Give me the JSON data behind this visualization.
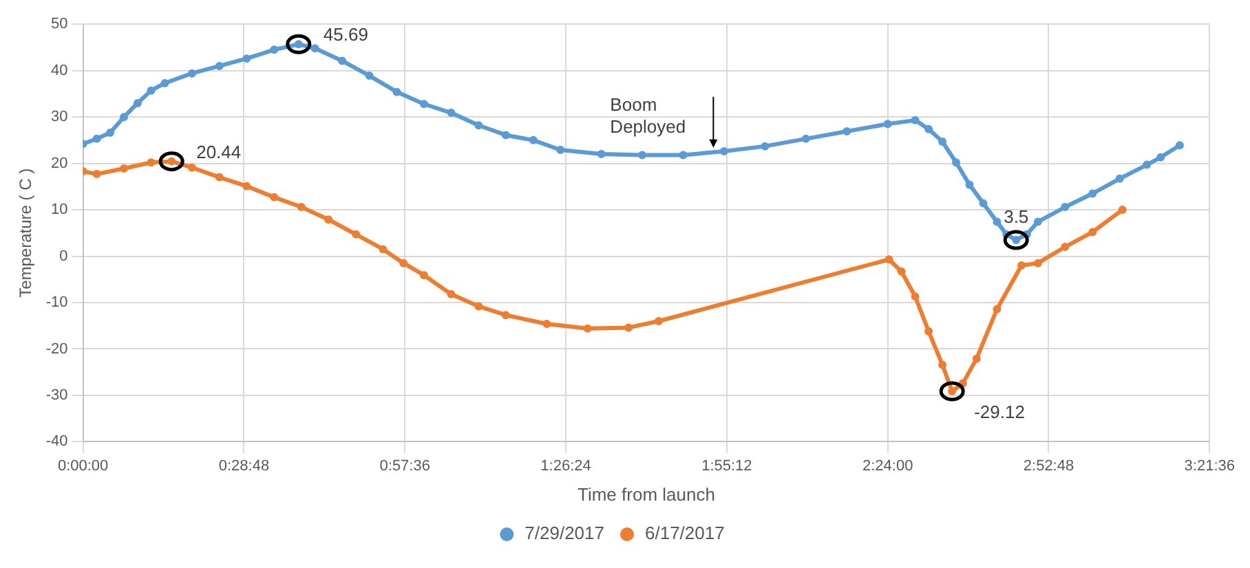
{
  "chart_data": {
    "type": "line",
    "xlabel": "Time from launch",
    "ylabel": "Temperature ( C )",
    "xlim": [
      0,
      3.36
    ],
    "xticks": [
      {
        "value": 0,
        "label": "0:00:00"
      },
      {
        "value": 0.48,
        "label": "0:28:48"
      },
      {
        "value": 0.96,
        "label": "0:57:36"
      },
      {
        "value": 1.44,
        "label": "1:26:24"
      },
      {
        "value": 1.92,
        "label": "1:55:12"
      },
      {
        "value": 2.4,
        "label": "2:24:00"
      },
      {
        "value": 2.88,
        "label": "2:52:48"
      },
      {
        "value": 3.36,
        "label": "3:21:36"
      }
    ],
    "ylim": [
      -40,
      50
    ],
    "yticks": [
      -40,
      -30,
      -20,
      -10,
      0,
      10,
      20,
      30,
      40,
      50
    ],
    "grid": true,
    "legend": "bottom",
    "marker": "circle",
    "line_style": "solid",
    "series": [
      {
        "name": "7/29/2017",
        "color": "#5b9bd5",
        "x": [
          0,
          0.041,
          0.081,
          0.122,
          0.163,
          0.203,
          0.244,
          0.325,
          0.407,
          0.488,
          0.57,
          0.643,
          0.692,
          0.773,
          0.854,
          0.936,
          1.017,
          1.098,
          1.18,
          1.261,
          1.343,
          1.424,
          1.546,
          1.668,
          1.79,
          1.912,
          2.034,
          2.156,
          2.278,
          2.4,
          2.482,
          2.522,
          2.563,
          2.604,
          2.644,
          2.685,
          2.726,
          2.754,
          2.783,
          2.815,
          2.848,
          2.929,
          3.011,
          3.092,
          3.173,
          3.214,
          3.271
        ],
        "values": [
          24.2,
          25.3,
          26.6,
          30,
          33,
          35.7,
          37.3,
          39.4,
          41,
          42.6,
          44.5,
          45.69,
          44.8,
          42.1,
          38.9,
          35.4,
          32.8,
          30.9,
          28.2,
          26.1,
          25,
          22.9,
          22,
          21.8,
          21.8,
          22.6,
          23.7,
          25.3,
          26.9,
          28.5,
          29.3,
          27.4,
          24.7,
          20.2,
          15.4,
          11.4,
          7.4,
          4.7,
          3.5,
          4.7,
          7.4,
          10.6,
          13.5,
          16.7,
          19.7,
          21.3,
          23.9
        ]
      },
      {
        "name": "6/17/2017",
        "color": "#ed7d31",
        "x": [
          0,
          0.041,
          0.122,
          0.203,
          0.264,
          0.325,
          0.407,
          0.488,
          0.57,
          0.651,
          0.732,
          0.814,
          0.895,
          0.956,
          1.017,
          1.098,
          1.18,
          1.261,
          1.383,
          1.505,
          1.627,
          1.717,
          2.404,
          2.441,
          2.482,
          2.522,
          2.563,
          2.592,
          2.624,
          2.665,
          2.726,
          2.799,
          2.848,
          2.929,
          3.011,
          3.1
        ],
        "values": [
          18.3,
          17.7,
          18.9,
          20.2,
          20.44,
          19.1,
          17,
          15.1,
          12.7,
          10.6,
          7.9,
          4.7,
          1.5,
          -1.5,
          -4.1,
          -8.2,
          -10.8,
          -12.7,
          -14.6,
          -15.6,
          -15.4,
          -14,
          -0.7,
          -3.3,
          -8.7,
          -16.2,
          -23.4,
          -29.12,
          -27.4,
          -22.1,
          -11.4,
          -2,
          -1.5,
          2,
          5.2,
          10
        ]
      }
    ],
    "annotations": [
      {
        "text": "45.69",
        "x": 0.643,
        "y": 45.69
      },
      {
        "text": "20.44",
        "x": 0.264,
        "y": 20.44
      },
      {
        "text": "3.5",
        "x": 2.783,
        "y": 3.5
      },
      {
        "text": "-29.12",
        "x": 2.592,
        "y": -29.12
      },
      {
        "text": "Boom\nDeployed",
        "x": 1.88,
        "y": 22.5
      }
    ]
  }
}
